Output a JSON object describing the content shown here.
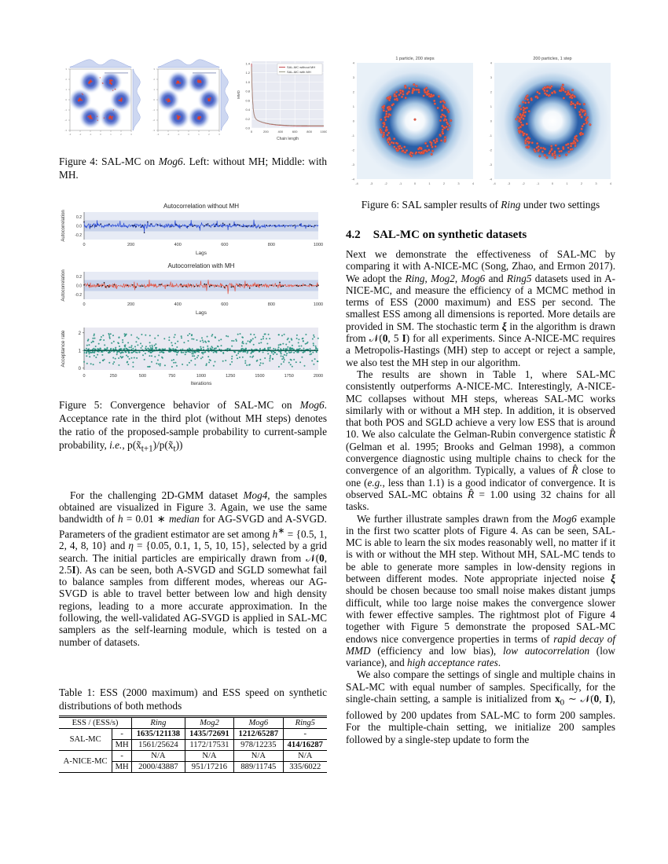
{
  "page": {
    "background": "#ffffff"
  },
  "left_column": {
    "figure4": {
      "caption_html": "Figure 4: SAL-MC on <i>Mog6</i>. Left: without MH; Middle: with MH."
    },
    "figure5": {
      "caption_html": "Figure 5: Convergence behavior of SAL-MC on <i>Mog6</i>. Acceptance rate in the third plot (without MH steps) denotes the ratio of the proposed-sample probability to current-sample probability, <i>i.e.</i>, p(x̃<sub>t+1</sub>)/p(x̃<sub>t</sub>))"
    },
    "paragraph_html": "For the challenging 2D-GMM dataset <i>Mog4</i>, the samples obtained are visualized in Figure 3. Again, we use the same bandwidth of <i>h</i> = 0.01 ∗ <i>median</i> for AG-SVGD and A-SVGD. Parameters of the gradient estimator are set among <i>h</i><sup>∗</sup> = {0.5, 1, 2, 4, 8, 10} and <i>η</i> = {0.05, 0.1, 1, 5, 10, 15}, selected by a grid search. The initial particles are empirically drawn from 𝒩(<b>0</b>, 2.5<b>I</b>). As can be seen, both A-SVGD and SGLD somewhat fail to balance samples from different modes, whereas our AG-SVGD is able to travel better between low and high density regions, leading to a more accurate approximation. In the following, the well-validated AG-SVGD is applied in SAL-MC samplers as the self-learning module, which is tested on a number of datasets.",
    "table": {
      "caption": "Table 1: ESS (2000 maximum) and ESS speed on synthetic distributions of both methods",
      "corner_header": "ESS / (ESS/s)",
      "dataset_headers": [
        "Ring",
        "Mog2",
        "Mog6",
        "Ring5"
      ],
      "groups": [
        {
          "method": "SAL-MC",
          "rows": [
            {
              "variant": "-",
              "cells": [
                "**1635/121138**",
                "**1435/72691**",
                "**1212/65287**",
                "-"
              ]
            },
            {
              "variant": "MH",
              "cells": [
                "1561/25624",
                "1172/17531",
                "978/12235",
                "**414/16287**"
              ]
            }
          ]
        },
        {
          "method": "A-NICE-MC",
          "rows": [
            {
              "variant": "-",
              "cells": [
                "N/A",
                "N/A",
                "N/A",
                "N/A"
              ]
            },
            {
              "variant": "MH",
              "cells": [
                "2000/43887",
                "951/17216",
                "889/11745",
                "335/6022"
              ]
            }
          ]
        }
      ]
    }
  },
  "right_column": {
    "figure6": {
      "caption_html": "Figure 6: SAL sampler results of <i>Ring</i> under two settings"
    },
    "section": {
      "number": "4.2",
      "title": "SAL-MC on synthetic datasets"
    },
    "paragraphs_html": [
      "Next we demonstrate the effectiveness of SAL-MC by comparing it with A-NICE-MC (Song, Zhao, and Ermon 2017). We adopt the <i>Ring</i>, <i>Mog2</i>, <i>Mog6</i> and <i>Ring5</i> datasets used in A-NICE-MC, and measure the efficiency of a MCMC method in terms of ESS (2000 maximum) and ESS per second. The smallest ESS among all dimensions is reported. More details are provided in SM. The stochastic term <b><i>ξ</i></b> in the algorithm is drawn from 𝒩(<b>0</b>, 5 <b>I</b>) for all experiments. Since A-NICE-MC requires a Metropolis-Hastings (MH) step to accept or reject a sample, we also test the MH step in our algorithm.",
      "The results are shown in Table 1, where SAL-MC consistently outperforms A-NICE-MC. Interestingly, A-NICE-MC collapses without MH steps, whereas SAL-MC works similarly with or without a MH step. In addition, it is observed that both POS and SGLD achieve a very low ESS that is around 10. We also calculate the Gelman-Rubin convergence statistic <i>R̂</i> (Gelman et al. 1995; Brooks and Gelman 1998), a common convergence diagnostic using multiple chains to check for the convergence of an algorithm. Typically, a values of <i>R̂</i> close to one (<i>e.g.</i>, less than 1.1) is a good indicator of convergence. It is observed SAL-MC obtains <i>R̂</i> = 1.00 using 32 chains for all tasks.",
      "We further illustrate samples drawn from the <i>Mog6</i> example in the first two scatter plots of Figure 4. As can be seen, SAL-MC is able to learn the six modes reasonably well, no matter if it is with or without the MH step. Without MH, SAL-MC tends to be able to generate more samples in low-density regions in between different modes. Note appropriate injected noise <b><i>ξ</i></b> should be chosen because too small noise makes distant jumps difficult, while too large noise makes the convergence slower with fewer effective samples. The rightmost plot of Figure 4 together with Figure 5 demonstrate the proposed SAL-MC endows nice convergence properties in terms of <i>rapid decay of MMD</i> (efficiency and low bias), <i>low autocorrelation</i> (low variance), and <i>high acceptance rates</i>.",
      "We also compare the settings of single and multiple chains in SAL-MC with equal number of samples. Specifically, for the single-chain setting, a sample is initialized from <b>x</b><sub>0</sub> ∼ 𝒩(<b>0</b>, <b>I</b>), followed by 200 updates from SAL-MC to form 200 samples. For the multiple-chain setting, we initialize 200 samples followed by a single-step update to form the"
    ]
  },
  "chart_data": {
    "fig4_joint_left": {
      "type": "jointplot",
      "variant": "without MH",
      "modes": 6,
      "xlim": [
        -3,
        3
      ],
      "ylim": [
        -3,
        3
      ],
      "bridge_samples": true,
      "seed": 5,
      "colors": {
        "blob": "#3b55c0",
        "points": "#df402e",
        "marginal_fill": "#cdd7f1",
        "marginal_stroke": "#93a6de"
      }
    },
    "fig4_joint_mid": {
      "type": "jointplot",
      "variant": "with MH",
      "modes": 6,
      "xlim": [
        -3,
        3
      ],
      "ylim": [
        -3,
        3
      ],
      "bridge_samples": false,
      "seed": 9,
      "colors": {
        "blob": "#3b55c0",
        "points": "#df402e",
        "marginal_fill": "#cdd7f1",
        "marginal_stroke": "#93a6de"
      }
    },
    "fig4_mmd": {
      "type": "line",
      "xlabel": "Chain length",
      "ylabel": "MMD",
      "xlim": [
        0,
        1000
      ],
      "ylim": [
        0,
        1.45
      ],
      "xticks": [
        0,
        200,
        400,
        600,
        800,
        1000
      ],
      "yticks": [
        0.0,
        0.2,
        0.4,
        0.6,
        0.8,
        1.0,
        1.2,
        1.4
      ],
      "grid": true,
      "legend_position": "top-right",
      "series": [
        {
          "name": "SAL-MC without MH",
          "color": "#c44e52",
          "start": 1.4,
          "end": 0.04
        },
        {
          "name": "SAL-MC with MH",
          "color": "#9a9a88",
          "start": 1.33,
          "end": 0.05
        }
      ],
      "shape": "rapid exponential decay, long flat tail near zero"
    },
    "fig5_autocorr_without_mh": {
      "type": "autocorr",
      "title": "Autocorrelation without MH",
      "xlabel": "Lags",
      "ylabel": "Autocorrelation",
      "xlim": [
        0,
        1000
      ],
      "ylim": [
        -0.3,
        0.3
      ],
      "xticks": [
        0,
        200,
        400,
        600,
        800,
        1000
      ],
      "yticks": [
        0.2,
        0.0,
        -0.2
      ],
      "confidence_band": 0.12,
      "mean": 0.0,
      "line_color": "#2a4bd7",
      "marker_color": "#10163a",
      "seed": 7,
      "markers": true
    },
    "fig5_autocorr_with_mh": {
      "type": "autocorr",
      "title": "Autocorrelation with MH",
      "xlabel": "Lags",
      "ylabel": "Autocorrelation",
      "xlim": [
        0,
        1000
      ],
      "ylim": [
        -0.3,
        0.3
      ],
      "xticks": [
        0,
        200,
        400,
        600,
        800,
        1000
      ],
      "yticks": [
        0.2,
        0.0,
        -0.2
      ],
      "confidence_band": 0.12,
      "mean": 0.0,
      "line_color": "#e25544",
      "marker_color": "#111111",
      "seed": 11,
      "markers": true
    },
    "fig5_acceptance": {
      "type": "scatter",
      "xlabel": "Iterations",
      "ylabel": "Acceptance rate",
      "xlim": [
        0,
        2000
      ],
      "ylim": [
        -0.1,
        2.3
      ],
      "xticks": [
        0,
        250,
        500,
        750,
        1000,
        1250,
        1500,
        1750,
        2000
      ],
      "yticks": [
        0,
        1,
        2
      ],
      "center_line": 1,
      "n_points": 750,
      "point_color": "#27917f",
      "line_color": "#0d5c50",
      "seed": 3
    },
    "fig6_ring_left": {
      "type": "ring",
      "title": "1 particle, 200 steps",
      "n_points": 200,
      "ring_radius": 2.15,
      "xlim": [
        -4,
        4
      ],
      "ylim": [
        -4,
        4
      ],
      "ticks": [
        -4,
        -3,
        -2,
        -1,
        0,
        1,
        2,
        3,
        4
      ],
      "center_point": true,
      "point_color": "#e35d4a",
      "ring_color": "#2a5fa8",
      "seed": 21
    },
    "fig6_ring_right": {
      "type": "ring",
      "title": "200 particles, 1 step",
      "n_points": 200,
      "ring_radius": 2.15,
      "xlim": [
        -4,
        4
      ],
      "ylim": [
        -4,
        4
      ],
      "ticks": [
        -4,
        -3,
        -2,
        -1,
        0,
        1,
        2,
        3,
        4
      ],
      "center_point": false,
      "point_color": "#e35d4a",
      "ring_color": "#2a5fa8",
      "seed": 42
    }
  }
}
